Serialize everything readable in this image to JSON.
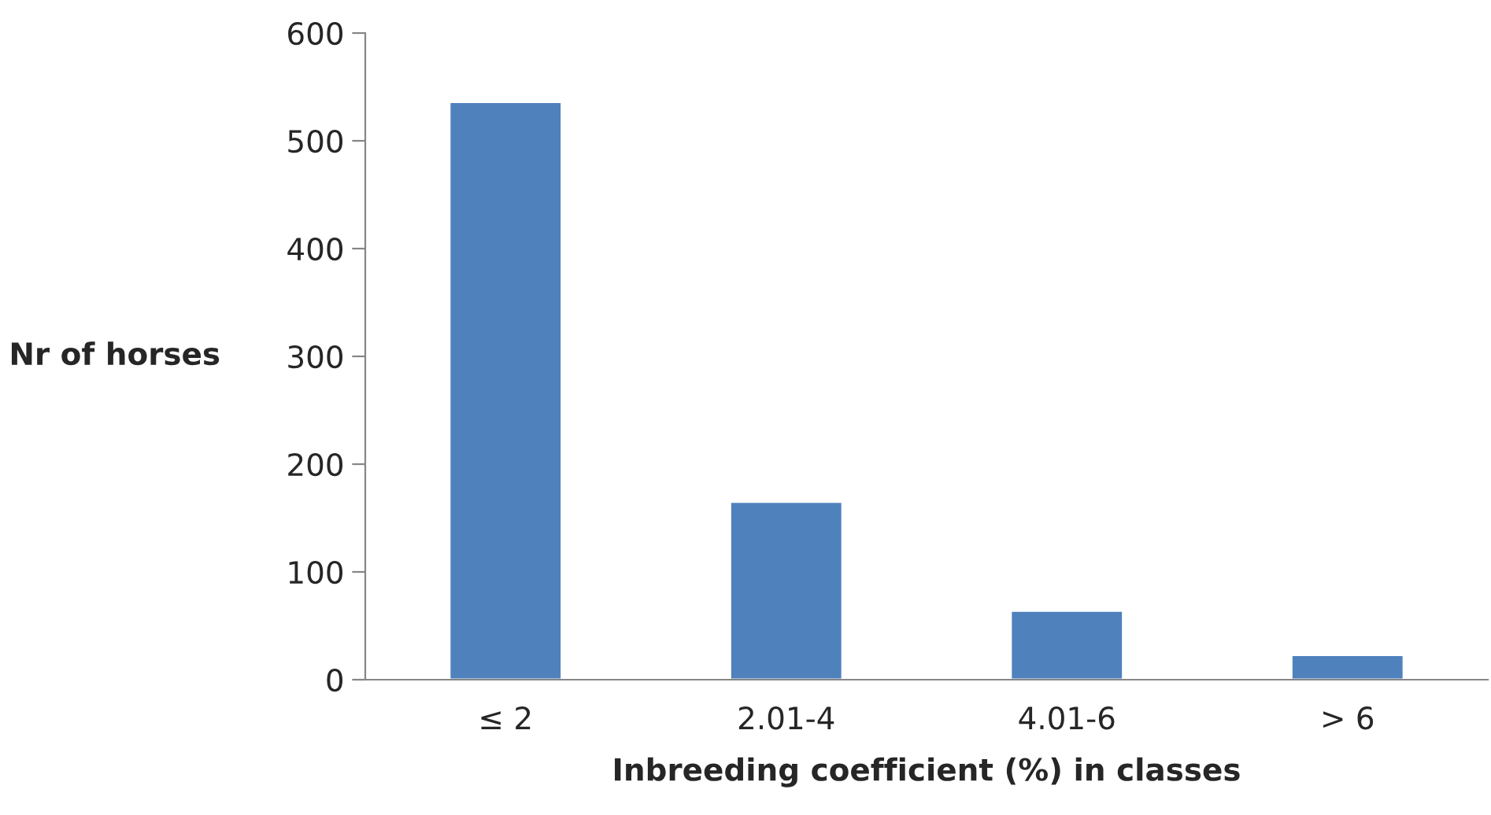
{
  "chart_data": {
    "type": "bar",
    "xlabel": "Inbreeding coefficient (%) in classes",
    "ylabel": "Nr of horses",
    "categories": [
      "≤ 2",
      "2.01-4",
      "4.01-6",
      "> 6"
    ],
    "values": [
      536,
      165,
      64,
      23
    ],
    "color": "#4f81bd",
    "ylim": [
      0,
      600
    ],
    "yticks": [
      0,
      100,
      200,
      300,
      400,
      500,
      600
    ],
    "grid": false,
    "legend": false
  }
}
